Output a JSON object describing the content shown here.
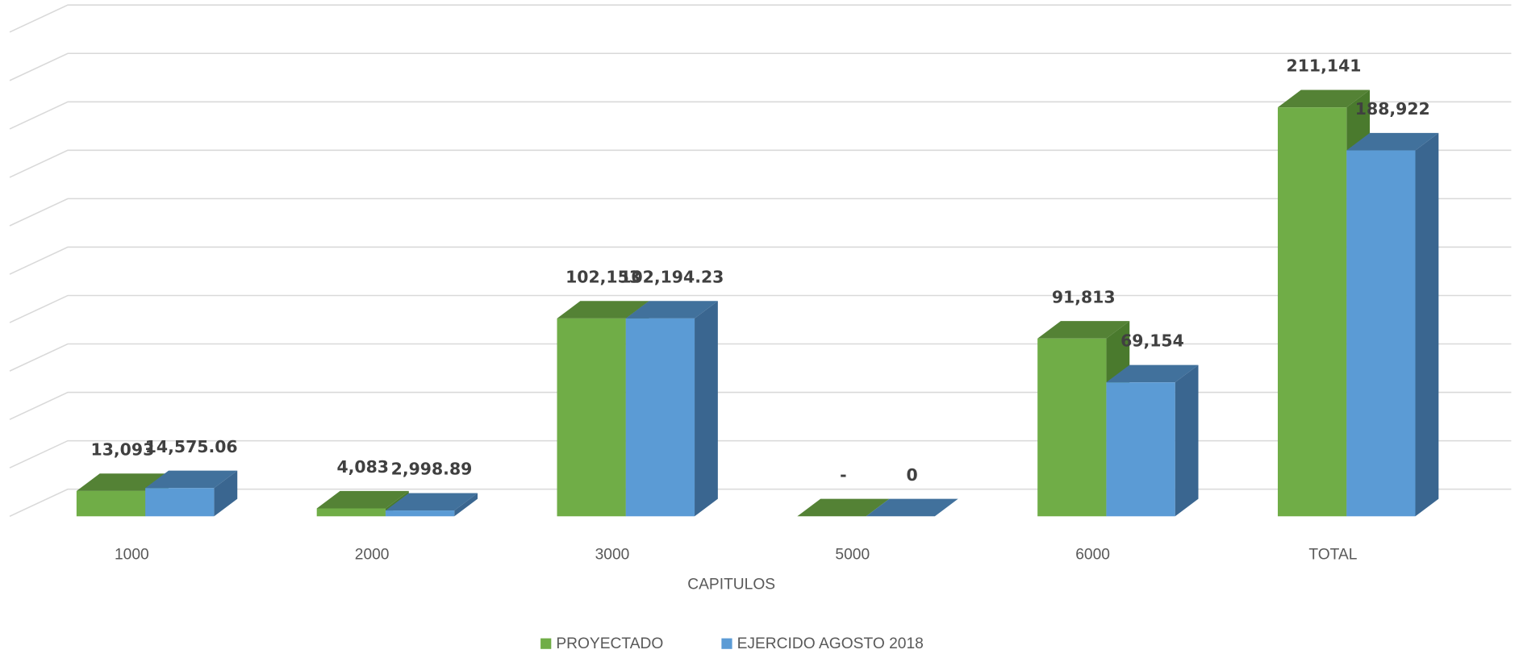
{
  "chart_data": {
    "type": "bar3d",
    "xlabel": "CAPITULOS",
    "categories": [
      "1000",
      "2000",
      "3000",
      "5000",
      "6000",
      "TOTAL"
    ],
    "series": [
      {
        "name": "PROYECTADO",
        "color": "#70ad47",
        "top_color": "#548235",
        "side_color": "#4a7a2d",
        "values": [
          13093,
          4083,
          102153,
          0,
          91813,
          211141
        ],
        "value_labels": [
          "13,093",
          "4,083",
          "102,153",
          "-",
          "91,813",
          "211,141"
        ]
      },
      {
        "name": "EJERCIDO AGOSTO 2018",
        "color": "#5b9bd5",
        "top_color": "#41719c",
        "side_color": "#3a6690",
        "values": [
          14575.06,
          2998.89,
          102194.23,
          0,
          69154,
          188922
        ],
        "value_labels": [
          "14,575.06",
          "2,998.89",
          "102,194.23",
          "0",
          "69,154",
          "188,922"
        ]
      }
    ],
    "ylim": [
      0,
      250000
    ],
    "yticks": [
      0,
      25000,
      50000,
      75000,
      100000,
      125000,
      150000,
      175000,
      200000,
      225000,
      250000
    ],
    "grid": true,
    "legend": "bottom"
  }
}
